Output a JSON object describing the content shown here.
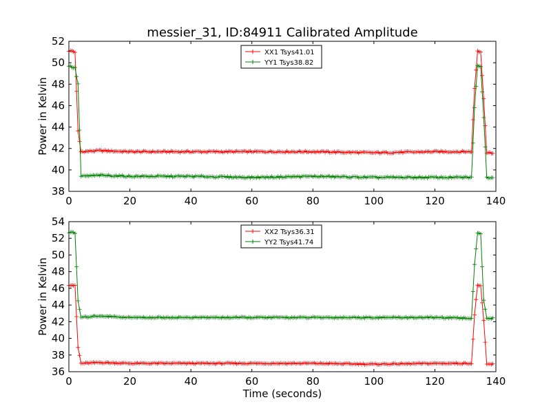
{
  "figure_title": "messier_31, ID:84911 Calibrated Amplitude",
  "xlabel": "Time (seconds)",
  "chart_data": [
    {
      "type": "line",
      "ylabel": "Power in Kelvin",
      "xlim": [
        0,
        140
      ],
      "ylim": [
        38,
        52
      ],
      "xticks": [
        "0",
        "20",
        "40",
        "60",
        "80",
        "100",
        "120",
        "140"
      ],
      "yticks": [
        "38",
        "40",
        "42",
        "44",
        "46",
        "48",
        "50",
        "52"
      ],
      "grid": false,
      "legend_position": "top-center",
      "series": [
        {
          "name": "XX1 Tsys41.01",
          "color": "#ff0000",
          "x": [
            0,
            1,
            2,
            3,
            4,
            10,
            20,
            40,
            60,
            80,
            100,
            120,
            132,
            133,
            134,
            135,
            136,
            137,
            138,
            139
          ],
          "y": [
            51.1,
            51.1,
            51.0,
            43.6,
            41.7,
            41.8,
            41.7,
            41.7,
            41.7,
            41.7,
            41.6,
            41.7,
            41.7,
            47.6,
            51.1,
            51.0,
            46.7,
            41.6,
            41.6,
            41.6
          ]
        },
        {
          "name": "YY1 Tsys38.82",
          "color": "#008000",
          "x": [
            0,
            1,
            2,
            3,
            4,
            10,
            20,
            40,
            60,
            80,
            100,
            120,
            132,
            133,
            134,
            135,
            136,
            137,
            138,
            139
          ],
          "y": [
            49.7,
            49.6,
            49.5,
            48.0,
            39.4,
            39.5,
            39.4,
            39.4,
            39.3,
            39.4,
            39.3,
            39.3,
            39.3,
            45.8,
            49.7,
            49.7,
            44.9,
            39.3,
            39.3,
            39.3
          ]
        }
      ]
    },
    {
      "type": "line",
      "ylabel": "Power in Kelvin",
      "xlabel": "Time (seconds)",
      "xlim": [
        0,
        140
      ],
      "ylim": [
        36,
        54
      ],
      "xticks": [
        "0",
        "20",
        "40",
        "60",
        "80",
        "100",
        "120",
        "140"
      ],
      "yticks": [
        "36",
        "38",
        "40",
        "42",
        "44",
        "46",
        "48",
        "50",
        "52",
        "54"
      ],
      "grid": false,
      "legend_position": "top-center",
      "series": [
        {
          "name": "XX2 Tsys36.31",
          "color": "#ff0000",
          "x": [
            0,
            1,
            2,
            3,
            4,
            10,
            20,
            40,
            60,
            80,
            100,
            120,
            132,
            133,
            134,
            135,
            136,
            137,
            138,
            139
          ],
          "y": [
            46.4,
            46.4,
            46.3,
            38.9,
            37.0,
            37.1,
            37.0,
            37.0,
            37.0,
            37.0,
            36.9,
            37.0,
            37.0,
            42.8,
            46.4,
            46.3,
            42.1,
            36.9,
            36.9,
            36.9
          ]
        },
        {
          "name": "YY2 Tsys41.74",
          "color": "#008000",
          "x": [
            0,
            1,
            2,
            3,
            4,
            10,
            20,
            40,
            60,
            80,
            100,
            120,
            132,
            133,
            134,
            135,
            136,
            137,
            138,
            139
          ],
          "y": [
            52.7,
            52.7,
            52.6,
            44.5,
            42.5,
            42.7,
            42.5,
            42.5,
            42.5,
            42.5,
            42.5,
            42.5,
            42.4,
            48.8,
            52.7,
            52.6,
            44.6,
            42.4,
            42.4,
            42.4
          ]
        }
      ]
    }
  ]
}
